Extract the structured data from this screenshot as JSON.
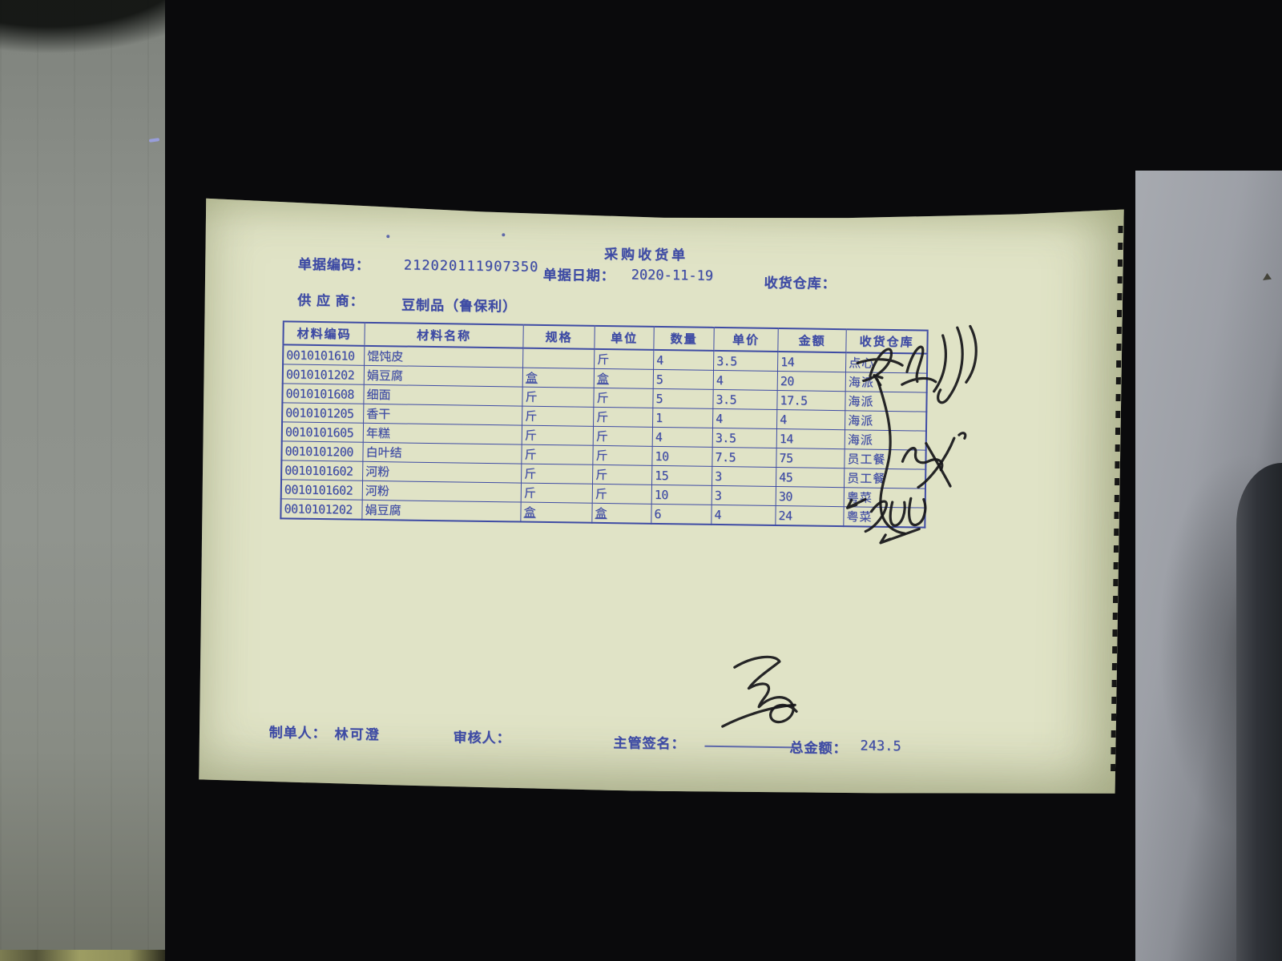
{
  "document": {
    "title": "采购收货单",
    "fields": {
      "code_label": "单据编码：",
      "code_value": "212020111907350",
      "date_label": "单据日期：",
      "date_value": "2020-11-19",
      "warehouse_label": "收货仓库：",
      "warehouse_value": "",
      "supplier_label": "供 应 商：",
      "supplier_value": "豆制品（鲁保利）"
    },
    "table": {
      "headers": [
        "材料编码",
        "材料名称",
        "规格",
        "单位",
        "数量",
        "单价",
        "金额",
        "收货仓库"
      ],
      "rows": [
        [
          "0010101610",
          "馄饨皮",
          "",
          "斤",
          "4",
          "3.5",
          "14",
          "点心"
        ],
        [
          "0010101202",
          "娟豆腐",
          "盒",
          "盒",
          "5",
          "4",
          "20",
          "海派"
        ],
        [
          "0010101608",
          "细面",
          "斤",
          "斤",
          "5",
          "3.5",
          "17.5",
          "海派"
        ],
        [
          "0010101205",
          "香干",
          "斤",
          "斤",
          "1",
          "4",
          "4",
          "海派"
        ],
        [
          "0010101605",
          "年糕",
          "斤",
          "斤",
          "4",
          "3.5",
          "14",
          "海派"
        ],
        [
          "0010101200",
          "白叶结",
          "斤",
          "斤",
          "10",
          "7.5",
          "75",
          "员工餐"
        ],
        [
          "0010101602",
          "河粉",
          "斤",
          "斤",
          "15",
          "3",
          "45",
          "员工餐"
        ],
        [
          "0010101602",
          "河粉",
          "斤",
          "斤",
          "10",
          "3",
          "30",
          "粤菜"
        ],
        [
          "0010101202",
          "娟豆腐",
          "盒",
          "盒",
          "6",
          "4",
          "24",
          "粤菜"
        ]
      ]
    },
    "footer": {
      "maker_label": "制单人：",
      "maker_value": "林可澄",
      "auditor_label": "审核人：",
      "auditor_value": "",
      "signature_label": "主管签名：",
      "total_label": "总金额：",
      "total_value": "243.5"
    },
    "ink_colors": {
      "print_blue": "#3e4ba4",
      "handwriting_black": "#17171a",
      "paper": "#e0e3c6"
    }
  }
}
